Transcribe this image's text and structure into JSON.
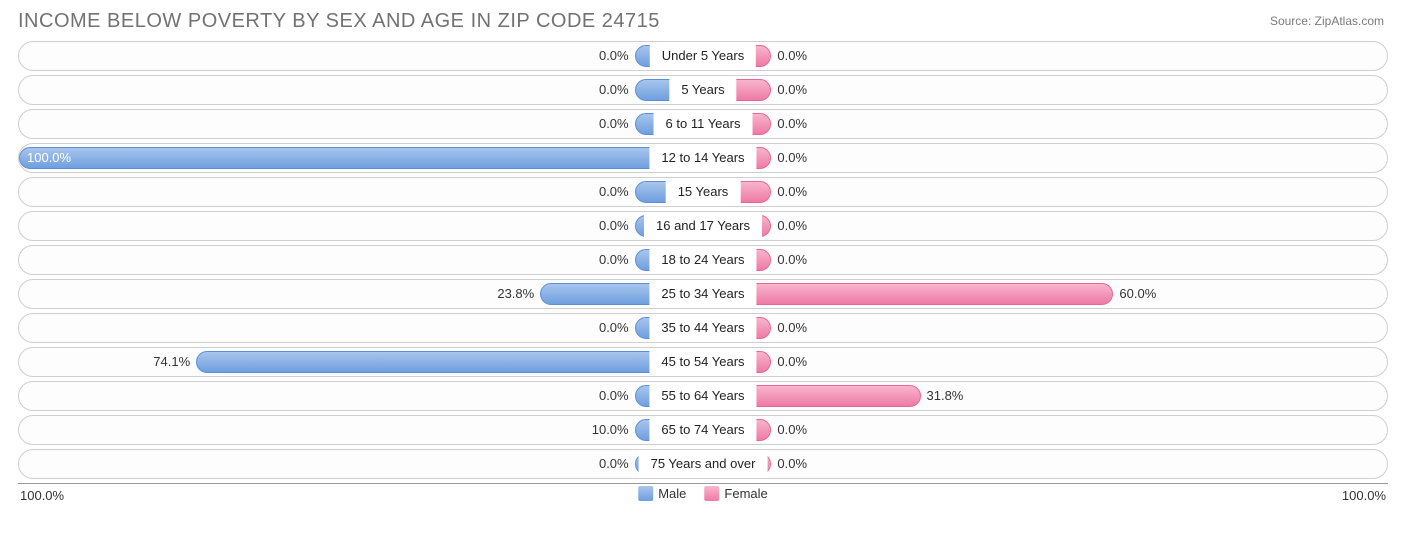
{
  "title": "INCOME BELOW POVERTY BY SEX AND AGE IN ZIP CODE 24715",
  "source": "Source: ZipAtlas.com",
  "chart": {
    "type": "diverging-bar",
    "min_bar_pct": 10.0,
    "axis_max": 100.0,
    "axis_left_label": "100.0%",
    "axis_right_label": "100.0%",
    "row_bg": "#fdfdfd",
    "row_border": "#cfcfcf",
    "male_fill_top": "#a8c5ec",
    "male_fill_bottom": "#6f9fe0",
    "male_border": "#5a8fd6",
    "female_fill_top": "#f7b5cc",
    "female_fill_bottom": "#ef7aa5",
    "female_border": "#e96594",
    "text_color": "#333333",
    "rows": [
      {
        "age": "Under 5 Years",
        "male": 0.0,
        "female": 0.0
      },
      {
        "age": "5 Years",
        "male": 0.0,
        "female": 0.0
      },
      {
        "age": "6 to 11 Years",
        "male": 0.0,
        "female": 0.0
      },
      {
        "age": "12 to 14 Years",
        "male": 100.0,
        "female": 0.0
      },
      {
        "age": "15 Years",
        "male": 0.0,
        "female": 0.0
      },
      {
        "age": "16 and 17 Years",
        "male": 0.0,
        "female": 0.0
      },
      {
        "age": "18 to 24 Years",
        "male": 0.0,
        "female": 0.0
      },
      {
        "age": "25 to 34 Years",
        "male": 23.8,
        "female": 60.0
      },
      {
        "age": "35 to 44 Years",
        "male": 0.0,
        "female": 0.0
      },
      {
        "age": "45 to 54 Years",
        "male": 74.1,
        "female": 0.0
      },
      {
        "age": "55 to 64 Years",
        "male": 0.0,
        "female": 31.8
      },
      {
        "age": "65 to 74 Years",
        "male": 10.0,
        "female": 0.0
      },
      {
        "age": "75 Years and over",
        "male": 0.0,
        "female": 0.0
      }
    ]
  },
  "legend": {
    "male": "Male",
    "female": "Female"
  }
}
